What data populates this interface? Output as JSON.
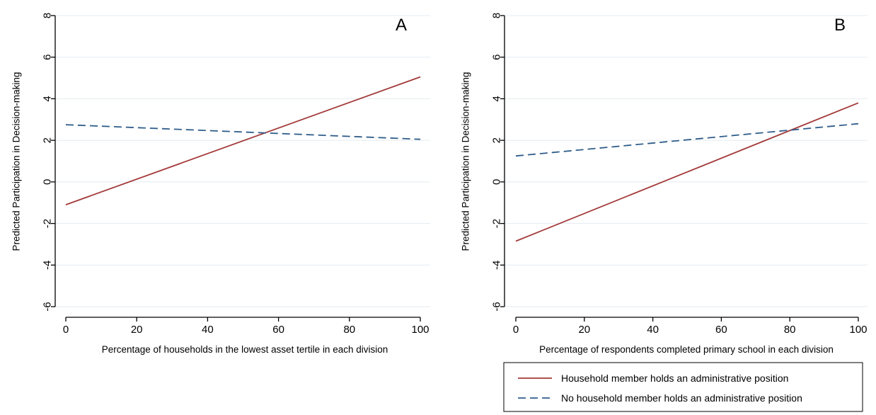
{
  "chart_data": [
    {
      "type": "line",
      "title": "",
      "panel_label": "A",
      "xlabel": "Percentage of households in the lowest asset tertile in each division",
      "ylabel": "Predicted Participation in Decision-making",
      "xlim": [
        0,
        100
      ],
      "ylim": [
        -7,
        8.5
      ],
      "xticks": [
        0,
        20,
        40,
        60,
        80,
        100
      ],
      "yticks": [
        -6,
        -4,
        -2,
        0,
        2,
        4,
        6,
        8
      ],
      "grid": true,
      "series": [
        {
          "name": "Household member holds an administrative position",
          "x": [
            0,
            100
          ],
          "y": [
            -1.1,
            5.05
          ],
          "color": "#a33a3a",
          "dash": "solid"
        },
        {
          "name": "No household member holds an administrative position",
          "x": [
            0,
            100
          ],
          "y": [
            2.75,
            2.05
          ],
          "color": "#2f5d8a",
          "dash": "dashed"
        }
      ]
    },
    {
      "type": "line",
      "title": "",
      "panel_label": "B",
      "xlabel": "Percentage of respondents completed primary school in each division",
      "ylabel": "Predicted Participation in Decision-making",
      "xlim": [
        0,
        100
      ],
      "ylim": [
        -7,
        8.5
      ],
      "xticks": [
        0,
        20,
        40,
        60,
        80,
        100
      ],
      "yticks": [
        -6,
        -4,
        -2,
        0,
        2,
        4,
        6,
        8
      ],
      "grid": true,
      "series": [
        {
          "name": "Household member holds an administrative position",
          "x": [
            0,
            100
          ],
          "y": [
            -2.85,
            3.8
          ],
          "color": "#a33a3a",
          "dash": "solid"
        },
        {
          "name": "No household member holds an administrative position",
          "x": [
            0,
            100
          ],
          "y": [
            1.25,
            2.8
          ],
          "color": "#2f5d8a",
          "dash": "dashed"
        }
      ]
    }
  ],
  "legend": {
    "placement": "bottom-right",
    "entries": [
      {
        "label": "Household member holds an administrative position",
        "color": "#a33a3a",
        "dash": "solid"
      },
      {
        "label": "No household member holds an administrative position",
        "color": "#2f5d8a",
        "dash": "dashed"
      }
    ]
  }
}
